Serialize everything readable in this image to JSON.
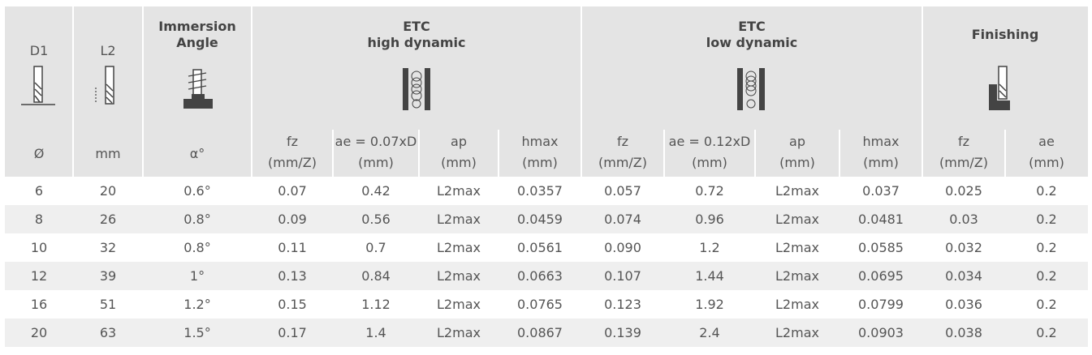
{
  "header": {
    "fixed": [
      {
        "label": "D1",
        "unit": "Ø"
      },
      {
        "label": "L2",
        "unit": "mm"
      },
      {
        "title": [
          "Immersion",
          "Angle"
        ],
        "unit": "α°"
      }
    ],
    "groups": [
      {
        "title": "ETC",
        "subtitle": "high dynamic",
        "columns": [
          {
            "name": "fz",
            "unit": "(mm/Z)"
          },
          {
            "name": "ae = 0.07xD",
            "unit": "(mm)"
          },
          {
            "name": "ap",
            "unit": "(mm)"
          },
          {
            "name": "hmax",
            "unit": "(mm)"
          }
        ]
      },
      {
        "title": "ETC",
        "subtitle": "low dynamic",
        "columns": [
          {
            "name": "fz",
            "unit": "(mm/Z)"
          },
          {
            "name": "ae = 0.12xD",
            "unit": "(mm)"
          },
          {
            "name": "ap",
            "unit": "(mm)"
          },
          {
            "name": "hmax",
            "unit": "(mm)"
          }
        ]
      },
      {
        "title": "Finishing",
        "columns": [
          {
            "name": "fz",
            "unit": "(mm/Z)"
          },
          {
            "name": "ae",
            "unit": "(mm)"
          }
        ]
      }
    ]
  },
  "table": {
    "rows": [
      [
        "6",
        "20",
        "0.6°",
        "0.07",
        "0.42",
        "L2max",
        "0.0357",
        "0.057",
        "0.72",
        "L2max",
        "0.037",
        "0.025",
        "0.2"
      ],
      [
        "8",
        "26",
        "0.8°",
        "0.09",
        "0.56",
        "L2max",
        "0.0459",
        "0.074",
        "0.96",
        "L2max",
        "0.0481",
        "0.03",
        "0.2"
      ],
      [
        "10",
        "32",
        "0.8°",
        "0.11",
        "0.7",
        "L2max",
        "0.0561",
        "0.090",
        "1.2",
        "L2max",
        "0.0585",
        "0.032",
        "0.2"
      ],
      [
        "12",
        "39",
        "1°",
        "0.13",
        "0.84",
        "L2max",
        "0.0663",
        "0.107",
        "1.44",
        "L2max",
        "0.0695",
        "0.034",
        "0.2"
      ],
      [
        "16",
        "51",
        "1.2°",
        "0.15",
        "1.12",
        "L2max",
        "0.0765",
        "0.123",
        "1.92",
        "L2max",
        "0.0799",
        "0.036",
        "0.2"
      ],
      [
        "20",
        "63",
        "1.5°",
        "0.17",
        "1.4",
        "L2max",
        "0.0867",
        "0.139",
        "2.4",
        "L2max",
        "0.0903",
        "0.038",
        "0.2"
      ]
    ]
  }
}
